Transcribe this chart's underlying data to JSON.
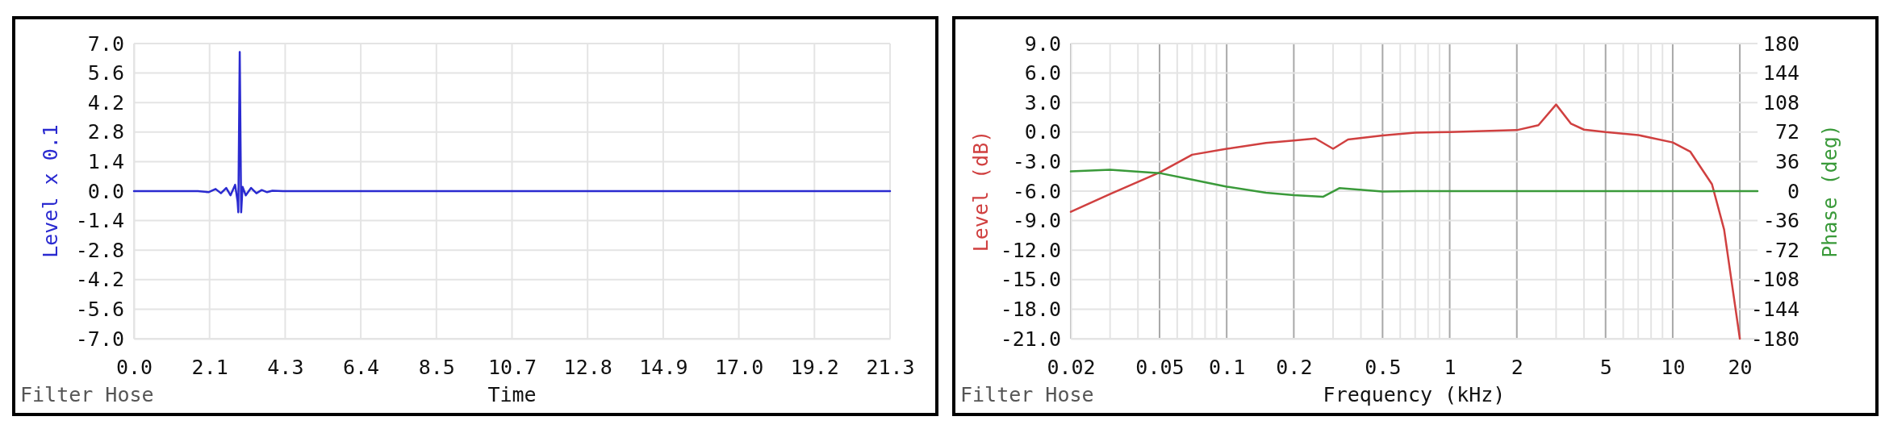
{
  "chart_data": [
    {
      "type": "line",
      "xlabel": "Time",
      "ylabel": "Level x 0.1",
      "annotations": [
        "Filter Hose"
      ],
      "grid": true,
      "xlim": [
        0,
        21.3
      ],
      "xticks": [
        {
          "value": 0,
          "label": "0.0"
        },
        {
          "value": 2.13,
          "label": "2.1"
        },
        {
          "value": 4.26,
          "label": "4.3"
        },
        {
          "value": 6.39,
          "label": "6.4"
        },
        {
          "value": 8.52,
          "label": "8.5"
        },
        {
          "value": 10.65,
          "label": "10.7"
        },
        {
          "value": 12.78,
          "label": "12.8"
        },
        {
          "value": 14.91,
          "label": "14.9"
        },
        {
          "value": 17.04,
          "label": "17.0"
        },
        {
          "value": 19.17,
          "label": "19.2"
        },
        {
          "value": 21.3,
          "label": "21.3"
        }
      ],
      "ylim": [
        -7,
        7
      ],
      "yticks": [
        {
          "value": -7,
          "label": "-7.0"
        },
        {
          "value": -5.6,
          "label": "-5.6"
        },
        {
          "value": -4.2,
          "label": "-4.2"
        },
        {
          "value": -2.8,
          "label": "-2.8"
        },
        {
          "value": -1.4,
          "label": "-1.4"
        },
        {
          "value": 0,
          "label": "0.0"
        },
        {
          "value": 1.4,
          "label": "1.4"
        },
        {
          "value": 2.8,
          "label": "2.8"
        },
        {
          "value": 4.2,
          "label": "4.2"
        },
        {
          "value": 5.6,
          "label": "5.6"
        },
        {
          "value": 7,
          "label": "7.0"
        }
      ],
      "series": [
        {
          "color": "#2a2ad0",
          "x": [
            0,
            1.8,
            2.1,
            2.3,
            2.45,
            2.6,
            2.72,
            2.85,
            2.92,
            2.94,
            2.98,
            3.02,
            3.06,
            3.15,
            3.3,
            3.45,
            3.6,
            3.75,
            3.9,
            4.2,
            21.3
          ],
          "values": [
            0,
            0,
            -0.05,
            0.1,
            -0.1,
            0.15,
            -0.2,
            0.3,
            -0.5,
            -1.0,
            6.6,
            -1.0,
            0.2,
            -0.2,
            0.15,
            -0.1,
            0.05,
            -0.05,
            0.02,
            0,
            0
          ]
        }
      ]
    },
    {
      "type": "line",
      "xlabel": "Frequency (kHz)",
      "ylabel": "Level (dB)",
      "y2label": "Phase (deg)",
      "annotations": [
        "Filter Hose"
      ],
      "grid": true,
      "log": "x",
      "xlim": [
        0.02,
        24
      ],
      "xticks": [
        0.02,
        {
          "value": 0.03,
          "label": null
        },
        {
          "value": 0.04,
          "label": null
        },
        0.05,
        {
          "value": 0.06,
          "label": null
        },
        {
          "value": 0.07,
          "label": null
        },
        {
          "value": 0.08,
          "label": null
        },
        {
          "value": 0.09,
          "label": null
        },
        0.1,
        {
          "value": 0.2,
          "label": "0.2"
        },
        {
          "value": 0.3,
          "label": null
        },
        {
          "value": 0.4,
          "label": null
        },
        0.5,
        {
          "value": 0.6,
          "label": null
        },
        {
          "value": 0.7,
          "label": null
        },
        {
          "value": 0.8,
          "label": null
        },
        {
          "value": 0.9,
          "label": null
        },
        1,
        2,
        {
          "value": 3,
          "label": null
        },
        {
          "value": 4,
          "label": null
        },
        5,
        {
          "value": 6,
          "label": null
        },
        {
          "value": 7,
          "label": null
        },
        {
          "value": 8,
          "label": null
        },
        {
          "value": 9,
          "label": null
        },
        10,
        20
      ],
      "ylim": [
        -21,
        9
      ],
      "yticks": [
        {
          "value": -21,
          "label": "-21.0"
        },
        {
          "value": -18,
          "label": "-18.0"
        },
        {
          "value": -15,
          "label": "-15.0"
        },
        {
          "value": -12,
          "label": "-12.0"
        },
        {
          "value": -9,
          "label": "-9.0"
        },
        {
          "value": -6,
          "label": "-6.0"
        },
        {
          "value": -3,
          "label": "-3.0"
        },
        {
          "value": 0,
          "label": "0.0"
        },
        {
          "value": 3,
          "label": "3.0"
        },
        {
          "value": 6,
          "label": "6.0"
        },
        {
          "value": 9,
          "label": "9.0"
        }
      ],
      "y2lim": [
        -180,
        180
      ],
      "y2ticks": [
        -180,
        -144,
        -108,
        -72,
        -36,
        0,
        36,
        72,
        108,
        144,
        180
      ],
      "series": [
        {
          "color": "#d04040",
          "x": [
            0.02,
            0.03,
            0.05,
            0.07,
            0.1,
            0.15,
            0.2,
            0.25,
            0.3,
            0.35,
            0.5,
            0.7,
            1,
            2,
            2.5,
            3,
            3.5,
            4,
            5,
            7,
            10,
            12,
            15,
            17,
            20
          ],
          "values": [
            -8.1,
            -6.3,
            -4.1,
            -2.3,
            -1.7,
            -1.1,
            -0.85,
            -0.65,
            -1.7,
            -0.75,
            -0.35,
            -0.05,
            0,
            0.2,
            0.7,
            2.8,
            0.85,
            0.25,
            0,
            -0.3,
            -1.05,
            -2.0,
            -5.3,
            -9.9,
            -21
          ]
        },
        {
          "color": "#3a9a3a",
          "axis": "y2",
          "x": [
            0.02,
            0.03,
            0.05,
            0.07,
            0.1,
            0.15,
            0.2,
            0.27,
            0.32,
            0.5,
            0.7,
            24
          ],
          "values": [
            24,
            26,
            22,
            14,
            5.5,
            -2,
            -5,
            -7,
            3.6,
            -0.6,
            0,
            0
          ]
        }
      ]
    }
  ]
}
